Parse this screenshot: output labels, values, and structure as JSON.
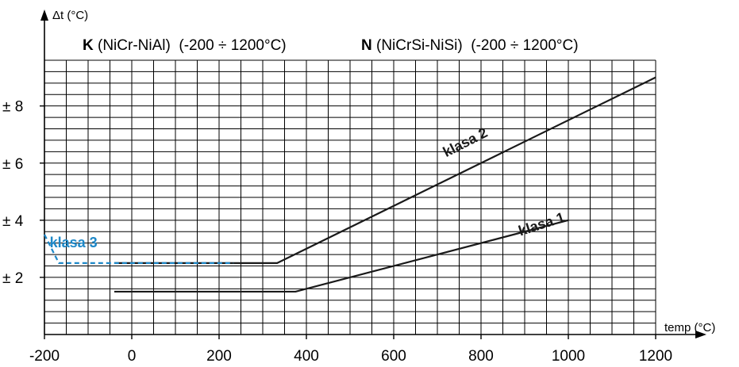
{
  "chart_data": {
    "type": "line",
    "header": {
      "k_bold": "K",
      "k_rest": " (NiCr-NiAl)  (-200 ÷ 1200°C)",
      "n_bold": "N",
      "n_rest": " (NiCrSi-NiSi)  (-200 ÷ 1200°C)"
    },
    "xlabel": "temp (°C)",
    "ylabel": "Δt (°C)",
    "xlim": [
      -200,
      1200
    ],
    "ylim": [
      0,
      9.6
    ],
    "x_ticks": [
      -200,
      0,
      200,
      400,
      600,
      800,
      1000,
      1200
    ],
    "y_ticks": [
      {
        "value": 2,
        "label": "± 2"
      },
      {
        "value": 4,
        "label": "± 4"
      },
      {
        "value": 6,
        "label": "± 6"
      },
      {
        "value": 8,
        "label": "± 8"
      }
    ],
    "grid": true,
    "grid_x_step": 50,
    "grid_y_step": 0.4,
    "series": [
      {
        "name": "klasa 1",
        "color": "#1a1a1a",
        "dash": false,
        "points": [
          [
            -40,
            1.5
          ],
          [
            375,
            1.5
          ],
          [
            1000,
            4.0
          ]
        ],
        "label_at": [
          890,
          3.45
        ],
        "label_angle": -18
      },
      {
        "name": "klasa 2",
        "color": "#1a1a1a",
        "dash": false,
        "points": [
          [
            -40,
            2.5
          ],
          [
            333,
            2.5
          ],
          [
            1200,
            9.0
          ]
        ],
        "label_at": [
          720,
          6.2
        ],
        "label_angle": -27
      },
      {
        "name": "klasa 3",
        "color": "#1e88c8",
        "dash": true,
        "points": [
          [
            -200,
            3.5
          ],
          [
            -167,
            2.5
          ],
          [
            233,
            2.5
          ]
        ],
        "label_at": [
          -188,
          3.05
        ],
        "label_angle": 0
      }
    ]
  }
}
